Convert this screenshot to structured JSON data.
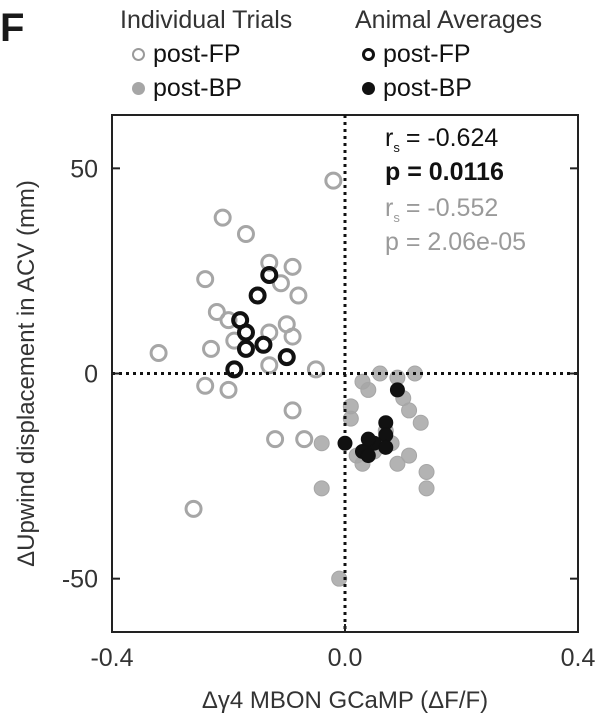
{
  "panel_letter": "F",
  "legend": {
    "individual_heading": "Individual Trials",
    "average_heading": "Animal Averages",
    "individual_fp": "post-FP",
    "individual_bp": "post-BP",
    "average_fp": "post-FP",
    "average_bp": "post-BP"
  },
  "colors": {
    "individual": "#a6a6a6",
    "average": "#111111",
    "reference_lines": "#111111"
  },
  "chart_data": {
    "type": "scatter",
    "xlabel": "Δγ4 MBON GCaMP (ΔF/F)",
    "ylabel": "ΔUpwind displacement in ACV (mm)",
    "xlim": [
      -0.4,
      0.4
    ],
    "ylim": [
      -63,
      63
    ],
    "xticks": [
      -0.4,
      0.0,
      0.4
    ],
    "xtick_labels": [
      "-0.4",
      "0.0",
      "0.4"
    ],
    "yticks": [
      -50,
      0,
      50
    ],
    "ytick_labels": [
      "-50",
      "0",
      "50"
    ],
    "reference_lines": {
      "x": 0,
      "y": 0,
      "style": "dotted"
    },
    "grid": false,
    "stats": {
      "averages": {
        "rs_label": "r",
        "rs_sub": "s",
        "rs_value": "= -0.624",
        "p_text": "p = 0.0116"
      },
      "trials": {
        "rs_label": "r",
        "rs_sub": "s",
        "rs_value": "= -0.552",
        "p_text": "p = 2.06e-05"
      }
    },
    "series": [
      {
        "name": "Individual Trials post-FP",
        "marker": "open-circle",
        "color": "#a6a6a6",
        "points": [
          [
            -0.21,
            38
          ],
          [
            -0.17,
            34
          ],
          [
            -0.24,
            23
          ],
          [
            -0.22,
            15
          ],
          [
            -0.2,
            13
          ],
          [
            -0.13,
            27
          ],
          [
            -0.11,
            22
          ],
          [
            -0.09,
            26
          ],
          [
            -0.08,
            19
          ],
          [
            -0.1,
            12
          ],
          [
            -0.09,
            9
          ],
          [
            -0.13,
            10
          ],
          [
            -0.19,
            8
          ],
          [
            -0.23,
            6
          ],
          [
            -0.32,
            5
          ],
          [
            -0.24,
            -3
          ],
          [
            -0.2,
            -4
          ],
          [
            -0.13,
            2
          ],
          [
            -0.05,
            1
          ],
          [
            -0.09,
            -9
          ],
          [
            -0.07,
            -16
          ],
          [
            -0.12,
            -16
          ],
          [
            -0.26,
            -33
          ],
          [
            -0.02,
            47
          ]
        ]
      },
      {
        "name": "Individual Trials post-BP",
        "marker": "filled-circle",
        "color": "#a6a6a6",
        "points": [
          [
            0.01,
            -8
          ],
          [
            0.03,
            -2
          ],
          [
            0.06,
            0
          ],
          [
            0.09,
            -1
          ],
          [
            0.12,
            0
          ],
          [
            0.1,
            -6
          ],
          [
            0.13,
            -12
          ],
          [
            0.07,
            -14
          ],
          [
            0.05,
            -19
          ],
          [
            0.09,
            -22
          ],
          [
            0.11,
            -20
          ],
          [
            0.14,
            -24
          ],
          [
            0.14,
            -28
          ],
          [
            -0.04,
            -17
          ],
          [
            0.02,
            -20
          ],
          [
            -0.04,
            -28
          ],
          [
            -0.01,
            -50
          ],
          [
            0.01,
            -11
          ],
          [
            0.04,
            -4
          ],
          [
            0.11,
            -9
          ],
          [
            0.08,
            -17
          ],
          [
            0.03,
            -22
          ]
        ]
      },
      {
        "name": "Animal Averages post-FP",
        "marker": "open-circle",
        "color": "#111111",
        "points": [
          [
            -0.13,
            24
          ],
          [
            -0.15,
            19
          ],
          [
            -0.18,
            13
          ],
          [
            -0.17,
            10
          ],
          [
            -0.14,
            7
          ],
          [
            -0.17,
            6
          ],
          [
            -0.19,
            1
          ],
          [
            -0.1,
            4
          ]
        ]
      },
      {
        "name": "Animal Averages post-BP",
        "marker": "filled-circle",
        "color": "#111111",
        "points": [
          [
            0.09,
            -4
          ],
          [
            0.07,
            -12
          ],
          [
            0.07,
            -15
          ],
          [
            0.05,
            -17
          ],
          [
            0.04,
            -16
          ],
          [
            0.03,
            -19
          ],
          [
            0.04,
            -20
          ],
          [
            0.07,
            -18
          ],
          [
            0.0,
            -17
          ]
        ]
      }
    ]
  }
}
